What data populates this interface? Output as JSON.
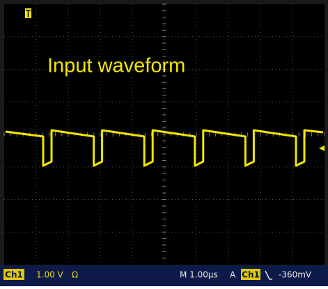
{
  "screen": {
    "label": "Input waveform"
  },
  "status_bar": {
    "channel": "Ch1",
    "volts_per_div": "1.00 V",
    "coupling": "Ω",
    "timebase": "M 1.00µs",
    "trigger_mode": "A",
    "trigger_source": "Ch1",
    "trigger_level": "-360mV"
  }
}
